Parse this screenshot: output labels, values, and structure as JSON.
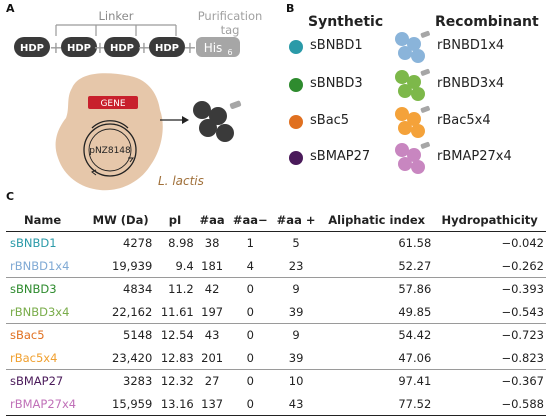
{
  "panels": {
    "a": "A",
    "b": "B",
    "c": "C"
  },
  "panel_a": {
    "hdp_label": "HDP",
    "plus": "+",
    "linker_label": "Linker",
    "purification_label_1": "Purification",
    "purification_label_2": "tag",
    "tag_label": "His",
    "tag_subscript": "6",
    "gene_label": "GENE",
    "plasmid_label": "pNZ8148",
    "organism_label": "L. lactis",
    "colors": {
      "hdp": "#3a3a3a",
      "tag": "#a6a6a6",
      "cell": "#e6c7aa",
      "gene": "#c8202c",
      "organism_text": "#a0703a"
    }
  },
  "panel_b": {
    "synthetic_heading": "Synthetic",
    "recombinant_heading": "Recombinant",
    "rows": [
      {
        "synthetic": "sBNBD1",
        "recombinant": "rBNBD1x4",
        "dot_color": "#2a9aa8",
        "blob_color": "#8ab4da"
      },
      {
        "synthetic": "sBNBD3",
        "recombinant": "rBNBD3x4",
        "dot_color": "#2e8b2e",
        "blob_color": "#7db84a"
      },
      {
        "synthetic": "sBac5",
        "recombinant": "rBac5x4",
        "dot_color": "#e07020",
        "blob_color": "#f4a23a"
      },
      {
        "synthetic": "sBMAP27",
        "recombinant": "rBMAP27x4",
        "dot_color": "#4a1a5a",
        "blob_color": "#c886c0"
      }
    ]
  },
  "table": {
    "headers": [
      "Name",
      "MW (Da)",
      "pI",
      "#aa",
      "#aa−",
      "#aa +",
      "Aliphatic index",
      "Hydropathicity"
    ],
    "rows": [
      {
        "name": "sBNBD1",
        "color": "#2a9aa8",
        "mw": "4278",
        "pi": "8.98",
        "aa": "38",
        "aa_neg": "1",
        "aa_pos": "5",
        "aliphatic": "61.58",
        "hydro": "−0.042"
      },
      {
        "name": "rBNBD1x4",
        "color": "#7fa9d4",
        "mw": "19,939",
        "pi": "9.4",
        "aa": "181",
        "aa_neg": "4",
        "aa_pos": "23",
        "aliphatic": "52.27",
        "hydro": "−0.262"
      },
      {
        "name": "sBNBD3",
        "color": "#2e8b2e",
        "mw": "4834",
        "pi": "11.2",
        "aa": "42",
        "aa_neg": "0",
        "aa_pos": "9",
        "aliphatic": "57.86",
        "hydro": "−0.393"
      },
      {
        "name": "rBNBD3x4",
        "color": "#79ac4a",
        "mw": "22,162",
        "pi": "11.61",
        "aa": "197",
        "aa_neg": "0",
        "aa_pos": "39",
        "aliphatic": "49.85",
        "hydro": "−0.543"
      },
      {
        "name": "sBac5",
        "color": "#e07020",
        "mw": "5148",
        "pi": "12.54",
        "aa": "43",
        "aa_neg": "0",
        "aa_pos": "9",
        "aliphatic": "54.42",
        "hydro": "−0.723"
      },
      {
        "name": "rBac5x4",
        "color": "#f0a030",
        "mw": "23,420",
        "pi": "12.83",
        "aa": "201",
        "aa_neg": "0",
        "aa_pos": "39",
        "aliphatic": "47.06",
        "hydro": "−0.823"
      },
      {
        "name": "sBMAP27",
        "color": "#4a1a5a",
        "mw": "3283",
        "pi": "12.32",
        "aa": "27",
        "aa_neg": "0",
        "aa_pos": "10",
        "aliphatic": "97.41",
        "hydro": "−0.367"
      },
      {
        "name": "rBMAP27x4",
        "color": "#c070b8",
        "mw": "15,959",
        "pi": "13.16",
        "aa": "137",
        "aa_neg": "0",
        "aa_pos": "43",
        "aliphatic": "77.52",
        "hydro": "−0.588"
      }
    ]
  }
}
